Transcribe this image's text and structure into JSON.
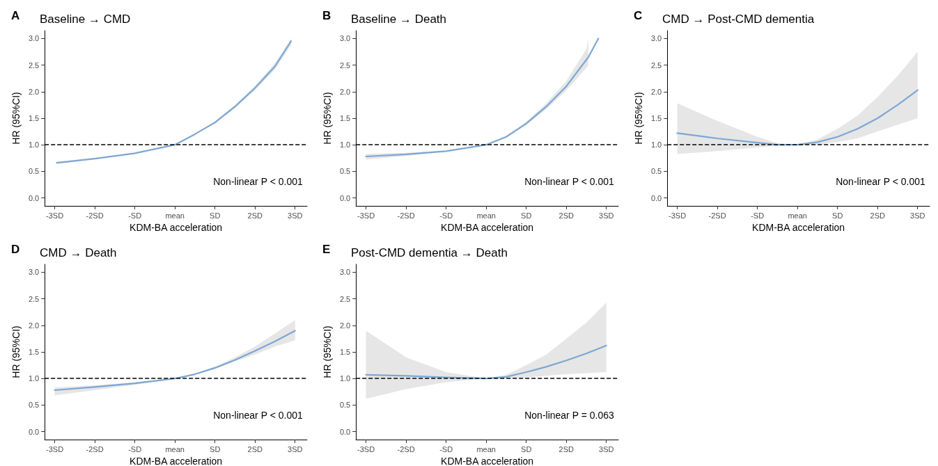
{
  "chart_data": [
    {
      "type": "line",
      "title": "Baseline → CMD",
      "xlabel": "KDM-BA acceleration",
      "ylabel": "HR (95%CI)",
      "annotations": [
        "A",
        "Non-linear P < 0.001"
      ],
      "xlim": [
        -3.25,
        3.3
      ],
      "ylim": [
        -0.15,
        3.15
      ],
      "xticks": [
        {
          "value": -3,
          "label": "-3SD"
        },
        {
          "value": -2,
          "label": "-2SD"
        },
        {
          "value": -1,
          "label": "-SD"
        },
        {
          "value": 0,
          "label": "mean"
        },
        {
          "value": 1,
          "label": "SD"
        },
        {
          "value": 2,
          "label": "2SD"
        },
        {
          "value": 3,
          "label": "3SD"
        }
      ],
      "yticks": [
        {
          "value": 0,
          "label": "0.0"
        },
        0.5,
        {
          "value": 1,
          "label": "1.0"
        },
        1.5,
        {
          "value": 2,
          "label": "2.0"
        },
        2.5,
        {
          "value": 3,
          "label": "3.0"
        }
      ],
      "grid": false,
      "marker": "none",
      "line_style": "solid",
      "ref_lines": [
        {
          "axis": "y",
          "value": 1,
          "color": "#000000",
          "line_style": "dashed"
        }
      ],
      "series": [
        {
          "color": "#7ba7d4",
          "x": [
            -2.95,
            -2,
            -1,
            0,
            0.5,
            1,
            1.5,
            2,
            2.5,
            2.9
          ],
          "values": [
            0.66,
            0.74,
            0.84,
            1.0,
            1.2,
            1.42,
            1.72,
            2.07,
            2.48,
            2.95
          ],
          "lower": [
            0.64,
            0.73,
            0.83,
            1.0,
            1.19,
            1.4,
            1.69,
            2.03,
            2.42,
            2.88
          ],
          "upper": [
            0.68,
            0.75,
            0.85,
            1.0,
            1.21,
            1.44,
            1.75,
            2.11,
            2.54,
            3.0
          ]
        }
      ]
    },
    {
      "type": "line",
      "title": "Baseline → Death",
      "xlabel": "KDM-BA acceleration",
      "ylabel": "HR (95%CI)",
      "annotations": [
        "B",
        "Non-linear P < 0.001"
      ],
      "xlim": [
        -3.25,
        3.3
      ],
      "ylim": [
        -0.15,
        3.15
      ],
      "xticks": [
        {
          "value": -3,
          "label": "-3SD"
        },
        {
          "value": -2,
          "label": "-2SD"
        },
        {
          "value": -1,
          "label": "-SD"
        },
        {
          "value": 0,
          "label": "mean"
        },
        {
          "value": 1,
          "label": "SD"
        },
        {
          "value": 2,
          "label": "2SD"
        },
        {
          "value": 3,
          "label": "3SD"
        }
      ],
      "yticks": [
        {
          "value": 0,
          "label": "0.0"
        },
        0.5,
        {
          "value": 1,
          "label": "1.0"
        },
        1.5,
        {
          "value": 2,
          "label": "2.0"
        },
        2.5,
        {
          "value": 3,
          "label": "3.0"
        }
      ],
      "grid": false,
      "marker": "none",
      "line_style": "solid",
      "ref_lines": [
        {
          "axis": "y",
          "value": 1,
          "color": "#000000",
          "line_style": "dashed"
        }
      ],
      "series": [
        {
          "color": "#7ba7d4",
          "x": [
            -3,
            -2,
            -1,
            0,
            0.5,
            1,
            1.5,
            2,
            2.5,
            2.55,
            2.8
          ],
          "values": [
            0.78,
            0.82,
            0.88,
            1.0,
            1.15,
            1.4,
            1.72,
            2.1,
            2.6,
            2.65,
            3.0
          ],
          "lower": [
            0.72,
            0.79,
            0.87,
            1.0,
            1.14,
            1.37,
            1.67,
            2.02,
            2.45,
            2.5,
            null
          ],
          "upper": [
            0.83,
            0.85,
            0.89,
            1.0,
            1.16,
            1.43,
            1.78,
            2.2,
            2.8,
            3.0,
            null
          ]
        }
      ]
    },
    {
      "type": "line",
      "title": "CMD → Post-CMD dementia",
      "xlabel": "KDM-BA acceleration",
      "ylabel": "HR (95%CI)",
      "annotations": [
        "C",
        "Non-linear P < 0.001"
      ],
      "xlim": [
        -3.25,
        3.3
      ],
      "ylim": [
        -0.15,
        3.15
      ],
      "xticks": [
        {
          "value": -3,
          "label": "-3SD"
        },
        {
          "value": -2,
          "label": "-2SD"
        },
        {
          "value": -1,
          "label": "-SD"
        },
        {
          "value": 0,
          "label": "mean"
        },
        {
          "value": 1,
          "label": "SD"
        },
        {
          "value": 2,
          "label": "2SD"
        },
        {
          "value": 3,
          "label": "3SD"
        }
      ],
      "yticks": [
        {
          "value": 0,
          "label": "0.0"
        },
        0.5,
        {
          "value": 1,
          "label": "1.0"
        },
        1.5,
        {
          "value": 2,
          "label": "2.0"
        },
        2.5,
        {
          "value": 3,
          "label": "3.0"
        }
      ],
      "grid": false,
      "marker": "none",
      "line_style": "solid",
      "ref_lines": [
        {
          "axis": "y",
          "value": 1,
          "color": "#000000",
          "line_style": "dashed"
        }
      ],
      "series": [
        {
          "color": "#7ba7d4",
          "x": [
            -3,
            -2,
            -1,
            -0.5,
            0,
            0.5,
            1,
            1.5,
            2,
            2.5,
            3
          ],
          "values": [
            1.22,
            1.12,
            1.04,
            1.0,
            1.0,
            1.05,
            1.15,
            1.3,
            1.5,
            1.75,
            2.03
          ],
          "lower": [
            0.83,
            0.88,
            0.95,
            0.98,
            1.0,
            1.0,
            1.05,
            1.12,
            1.25,
            1.38,
            1.5
          ],
          "upper": [
            1.78,
            1.45,
            1.15,
            1.03,
            1.0,
            1.1,
            1.3,
            1.55,
            1.9,
            2.3,
            2.75
          ]
        }
      ]
    },
    {
      "type": "line",
      "title": "CMD → Death",
      "xlabel": "KDM-BA acceleration",
      "ylabel": "HR (95%CI)",
      "annotations": [
        "D",
        "Non-linear P < 0.001"
      ],
      "xlim": [
        -3.25,
        3.3
      ],
      "ylim": [
        -0.15,
        3.15
      ],
      "xticks": [
        {
          "value": -3,
          "label": "-3SD"
        },
        {
          "value": -2,
          "label": "-2SD"
        },
        {
          "value": -1,
          "label": "-SD"
        },
        {
          "value": 0,
          "label": "mean"
        },
        {
          "value": 1,
          "label": "SD"
        },
        {
          "value": 2,
          "label": "2SD"
        },
        {
          "value": 3,
          "label": "3SD"
        }
      ],
      "yticks": [
        {
          "value": 0,
          "label": "0.0"
        },
        0.5,
        {
          "value": 1,
          "label": "1.0"
        },
        1.5,
        {
          "value": 2,
          "label": "2.0"
        },
        2.5,
        {
          "value": 3,
          "label": "3.0"
        }
      ],
      "grid": false,
      "marker": "none",
      "line_style": "solid",
      "ref_lines": [
        {
          "axis": "y",
          "value": 1,
          "color": "#000000",
          "line_style": "dashed"
        }
      ],
      "series": [
        {
          "color": "#7ba7d4",
          "x": [
            -3,
            -2,
            -1,
            0,
            0.5,
            1,
            1.5,
            2,
            2.5,
            3
          ],
          "values": [
            0.78,
            0.84,
            0.91,
            1.0,
            1.08,
            1.2,
            1.35,
            1.52,
            1.7,
            1.9
          ],
          "lower": [
            0.68,
            0.78,
            0.88,
            1.0,
            1.07,
            1.18,
            1.32,
            1.45,
            1.6,
            1.72
          ],
          "upper": [
            0.83,
            0.87,
            0.93,
            1.0,
            1.09,
            1.22,
            1.4,
            1.6,
            1.85,
            2.1
          ]
        }
      ]
    },
    {
      "type": "line",
      "title": "Post-CMD dementia → Death",
      "xlabel": "KDM-BA acceleration",
      "ylabel": "HR (95%CI)",
      "annotations": [
        "E",
        "Non-linear P = 0.063"
      ],
      "xlim": [
        -3.25,
        3.3
      ],
      "ylim": [
        -0.15,
        3.15
      ],
      "xticks": [
        {
          "value": -3,
          "label": "-3SD"
        },
        {
          "value": -2,
          "label": "-2SD"
        },
        {
          "value": -1,
          "label": "-SD"
        },
        {
          "value": 0,
          "label": "mean"
        },
        {
          "value": 1,
          "label": "SD"
        },
        {
          "value": 2,
          "label": "2SD"
        },
        {
          "value": 3,
          "label": "3SD"
        }
      ],
      "yticks": [
        {
          "value": 0,
          "label": "0.0"
        },
        0.5,
        {
          "value": 1,
          "label": "1.0"
        },
        1.5,
        {
          "value": 2,
          "label": "2.0"
        },
        2.5,
        {
          "value": 3,
          "label": "3.0"
        }
      ],
      "grid": false,
      "marker": "none",
      "line_style": "solid",
      "ref_lines": [
        {
          "axis": "y",
          "value": 1,
          "color": "#000000",
          "line_style": "dashed"
        }
      ],
      "series": [
        {
          "color": "#7ba7d4",
          "x": [
            -3,
            -2,
            -1,
            0,
            0.5,
            1,
            1.5,
            2,
            2.5,
            3
          ],
          "values": [
            1.07,
            1.05,
            1.02,
            1.0,
            1.03,
            1.12,
            1.22,
            1.34,
            1.47,
            1.62
          ],
          "lower": [
            0.62,
            0.8,
            0.93,
            1.0,
            1.0,
            1.02,
            1.05,
            1.08,
            1.1,
            1.12
          ],
          "upper": [
            1.9,
            1.4,
            1.12,
            1.0,
            1.07,
            1.25,
            1.45,
            1.75,
            2.05,
            2.43
          ]
        }
      ]
    }
  ]
}
